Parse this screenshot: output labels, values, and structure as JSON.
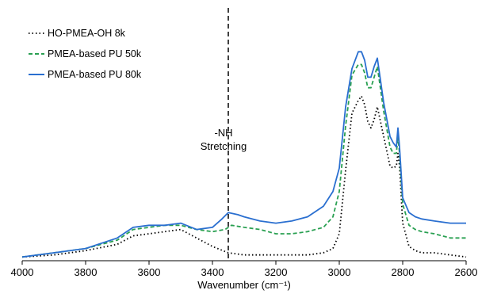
{
  "chart_data": {
    "type": "line",
    "title": "",
    "xlabel": "Wavenumber (cm⁻¹)",
    "ylabel": "",
    "xlim": [
      4000,
      2600
    ],
    "x_reversed": true,
    "ylim": [
      0,
      1
    ],
    "grid": false,
    "y_ticks_shown": false,
    "legend_position": "top-left",
    "x_ticks": [
      "4000",
      "3800",
      "3600",
      "3400",
      "3200",
      "3000",
      "2800",
      "2600"
    ],
    "annotation": {
      "lines": [
        "-NH",
        "Stretching"
      ],
      "x": 3350,
      "line_style": "dashed vertical"
    },
    "series": [
      {
        "name": "HO-PMEA-OH 8k",
        "color": "#000000",
        "style": "dotted",
        "x": [
          4000,
          3900,
          3800,
          3700,
          3650,
          3600,
          3550,
          3500,
          3450,
          3400,
          3350,
          3300,
          3250,
          3200,
          3150,
          3100,
          3050,
          3020,
          3000,
          2980,
          2960,
          2940,
          2930,
          2920,
          2910,
          2900,
          2890,
          2880,
          2860,
          2840,
          2830,
          2820,
          2815,
          2810,
          2800,
          2780,
          2760,
          2740,
          2700,
          2650,
          2600
        ],
        "y": [
          0.01,
          0.02,
          0.04,
          0.07,
          0.11,
          0.12,
          0.13,
          0.14,
          0.1,
          0.06,
          0.03,
          0.02,
          0.02,
          0.02,
          0.02,
          0.02,
          0.03,
          0.05,
          0.12,
          0.42,
          0.69,
          0.75,
          0.77,
          0.73,
          0.65,
          0.62,
          0.66,
          0.72,
          0.58,
          0.44,
          0.43,
          0.44,
          0.5,
          0.44,
          0.17,
          0.06,
          0.04,
          0.03,
          0.03,
          0.02,
          0.01
        ]
      },
      {
        "name": "PMEA-based PU 50k",
        "color": "#2aa052",
        "style": "dashed",
        "x": [
          4000,
          3900,
          3800,
          3700,
          3650,
          3600,
          3550,
          3500,
          3450,
          3400,
          3360,
          3340,
          3300,
          3250,
          3200,
          3150,
          3100,
          3050,
          3020,
          3000,
          2980,
          2960,
          2940,
          2930,
          2920,
          2910,
          2900,
          2890,
          2880,
          2860,
          2840,
          2830,
          2820,
          2815,
          2810,
          2800,
          2780,
          2760,
          2740,
          2700,
          2650,
          2600
        ],
        "y": [
          0.01,
          0.03,
          0.05,
          0.09,
          0.14,
          0.15,
          0.16,
          0.16,
          0.14,
          0.13,
          0.14,
          0.16,
          0.15,
          0.14,
          0.12,
          0.12,
          0.13,
          0.15,
          0.2,
          0.32,
          0.63,
          0.87,
          0.92,
          0.92,
          0.88,
          0.81,
          0.81,
          0.86,
          0.91,
          0.7,
          0.53,
          0.5,
          0.5,
          0.58,
          0.5,
          0.26,
          0.16,
          0.14,
          0.13,
          0.12,
          0.1,
          0.1
        ]
      },
      {
        "name": "PMEA-based PU 80k",
        "color": "#2a6fd0",
        "style": "solid",
        "x": [
          4000,
          3900,
          3800,
          3700,
          3650,
          3600,
          3550,
          3500,
          3450,
          3400,
          3370,
          3350,
          3320,
          3300,
          3250,
          3200,
          3150,
          3100,
          3050,
          3020,
          3000,
          2980,
          2960,
          2940,
          2930,
          2920,
          2910,
          2900,
          2890,
          2880,
          2860,
          2840,
          2830,
          2820,
          2815,
          2810,
          2800,
          2780,
          2760,
          2740,
          2700,
          2650,
          2600
        ],
        "y": [
          0.01,
          0.03,
          0.05,
          0.1,
          0.15,
          0.16,
          0.16,
          0.17,
          0.14,
          0.15,
          0.19,
          0.22,
          0.21,
          0.2,
          0.18,
          0.17,
          0.18,
          0.2,
          0.25,
          0.32,
          0.43,
          0.72,
          0.9,
          0.98,
          0.98,
          0.94,
          0.86,
          0.86,
          0.91,
          0.95,
          0.74,
          0.58,
          0.55,
          0.53,
          0.62,
          0.53,
          0.29,
          0.22,
          0.2,
          0.19,
          0.18,
          0.17,
          0.17
        ]
      }
    ]
  }
}
